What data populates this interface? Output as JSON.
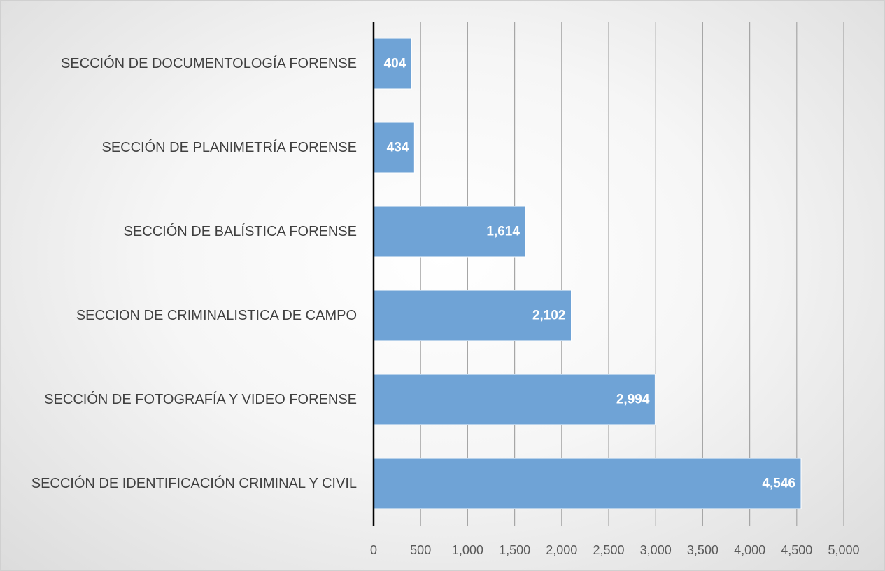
{
  "chart_data": {
    "type": "bar",
    "orientation": "horizontal",
    "categories": [
      "SECCIÓN DE DOCUMENTOLOGÍA FORENSE",
      "SECCIÓN DE PLANIMETRÍA FORENSE",
      "SECCIÓN DE BALÍSTICA FORENSE",
      "SECCION DE CRIMINALISTICA DE CAMPO",
      "SECCIÓN DE FOTOGRAFÍA Y VIDEO FORENSE",
      "SECCIÓN DE IDENTIFICACIÓN CRIMINAL Y CIVIL"
    ],
    "values": [
      404,
      434,
      1614,
      2102,
      2994,
      4546
    ],
    "data_labels": [
      "404",
      "434",
      "1,614",
      "2,102",
      "2,994",
      "4,546"
    ],
    "title": "",
    "xlabel": "",
    "ylabel": "",
    "xlim": [
      0,
      5000
    ],
    "xticks": [
      0,
      500,
      1000,
      1500,
      2000,
      2500,
      3000,
      3500,
      4000,
      4500,
      5000
    ],
    "xtick_labels": [
      "0",
      "500",
      "1,000",
      "1,500",
      "2,000",
      "2,500",
      "3,000",
      "3,500",
      "4,000",
      "4,500",
      "5,000"
    ],
    "grid": "vertical",
    "legend": "none",
    "bar_color": "#6FA3D6",
    "background": "radial-gradient-gray"
  }
}
